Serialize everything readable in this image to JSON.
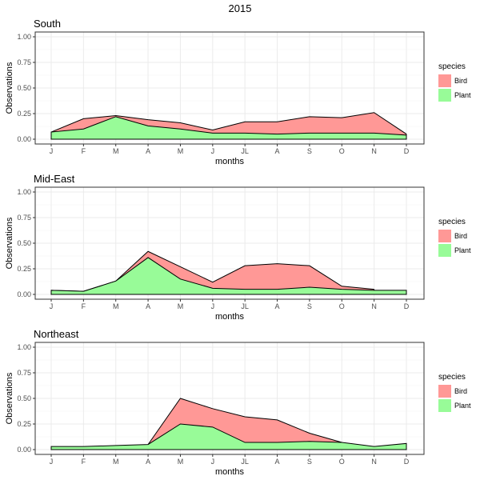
{
  "chart_title": "2015",
  "colors": {
    "bird": "#ff9896",
    "plant": "#98fb98",
    "outline": "#000000",
    "grid": "#ebebeb",
    "panel_border": "#333333"
  },
  "chart_data": [
    {
      "type": "area",
      "stacked": true,
      "title": "South",
      "xlabel": "months",
      "ylabel": "Observations",
      "ylim": [
        0,
        1
      ],
      "yticks": [
        "0.00",
        "0.25",
        "0.50",
        "0.75",
        "1.00"
      ],
      "categories": [
        "J",
        "F",
        "M",
        "A",
        "M",
        "J",
        "JL",
        "A",
        "S",
        "O",
        "N",
        "D"
      ],
      "legend": {
        "title": "species",
        "position": "right",
        "entries": [
          "Bird",
          "Plant"
        ]
      },
      "series": [
        {
          "name": "Plant",
          "values": [
            0.07,
            0.1,
            0.22,
            0.13,
            0.1,
            0.06,
            0.06,
            0.05,
            0.06,
            0.06,
            0.06,
            0.04
          ]
        },
        {
          "name": "Bird",
          "values": [
            0.0,
            0.1,
            0.01,
            0.06,
            0.06,
            0.03,
            0.11,
            0.12,
            0.16,
            0.15,
            0.2,
            0.01
          ]
        }
      ]
    },
    {
      "type": "area",
      "stacked": true,
      "title": "Mid-East",
      "xlabel": "months",
      "ylabel": "Observations",
      "ylim": [
        0,
        1
      ],
      "yticks": [
        "0.00",
        "0.25",
        "0.50",
        "0.75",
        "1.00"
      ],
      "categories": [
        "J",
        "F",
        "M",
        "A",
        "M",
        "J",
        "JL",
        "A",
        "S",
        "O",
        "N",
        "D"
      ],
      "legend": {
        "title": "species",
        "position": "right",
        "entries": [
          "Bird",
          "Plant"
        ]
      },
      "series": [
        {
          "name": "Plant",
          "values": [
            0.04,
            0.03,
            0.13,
            0.36,
            0.15,
            0.06,
            0.05,
            0.05,
            0.07,
            0.05,
            0.04,
            0.04
          ]
        },
        {
          "name": "Bird",
          "values": [
            0.0,
            0.0,
            0.0,
            0.06,
            0.12,
            0.06,
            0.23,
            0.25,
            0.21,
            0.03,
            0.01,
            null
          ]
        }
      ]
    },
    {
      "type": "area",
      "stacked": true,
      "title": "Northeast",
      "xlabel": "months",
      "ylabel": "Observations",
      "ylim": [
        0,
        1
      ],
      "yticks": [
        "0.00",
        "0.25",
        "0.50",
        "0.75",
        "1.00"
      ],
      "categories": [
        "J",
        "F",
        "M",
        "A",
        "M",
        "J",
        "JL",
        "A",
        "S",
        "O",
        "N",
        "D"
      ],
      "legend": {
        "title": "species",
        "position": "right",
        "entries": [
          "Bird",
          "Plant"
        ]
      },
      "series": [
        {
          "name": "Plant",
          "values": [
            0.03,
            0.03,
            0.04,
            0.05,
            0.25,
            0.22,
            0.07,
            0.07,
            0.08,
            0.07,
            0.03,
            0.06
          ]
        },
        {
          "name": "Bird",
          "values": [
            null,
            null,
            null,
            0.0,
            0.25,
            0.18,
            0.25,
            0.22,
            0.08,
            0.0,
            null,
            null
          ]
        }
      ]
    }
  ]
}
